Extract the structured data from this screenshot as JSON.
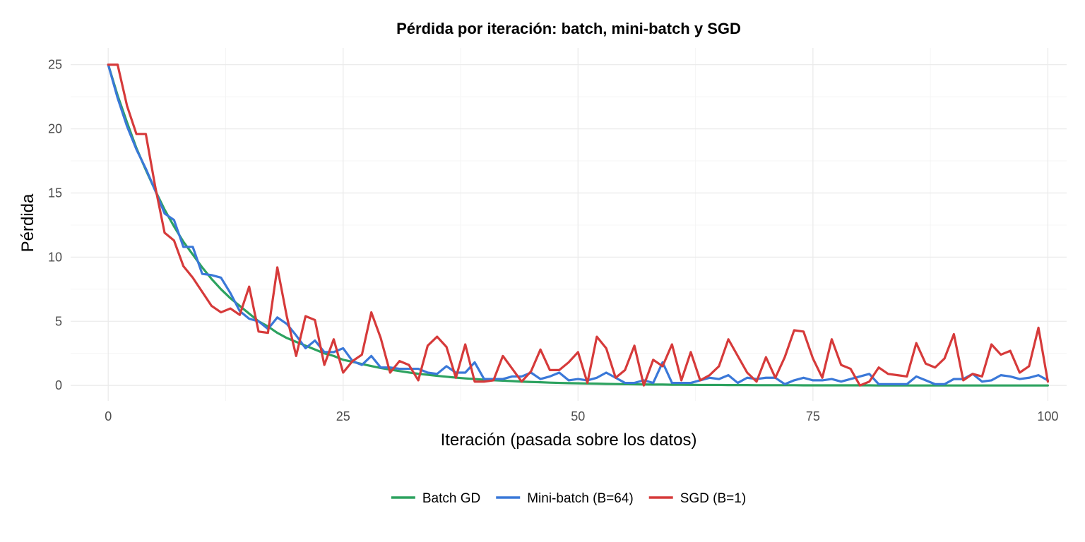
{
  "chart_data": {
    "type": "line",
    "title": "Pérdida por iteración: batch, mini-batch y SGD",
    "xlabel": "Iteración (pasada sobre los datos)",
    "ylabel": "Pérdida",
    "xlim": [
      -4,
      102
    ],
    "ylim": [
      -1.2,
      26.3
    ],
    "x_ticks": [
      0,
      25,
      50,
      75,
      100
    ],
    "y_ticks": [
      0,
      5,
      10,
      15,
      20,
      25
    ],
    "grid": true,
    "legend_position": "bottom",
    "x": [
      0,
      1,
      2,
      3,
      4,
      5,
      6,
      7,
      8,
      9,
      10,
      11,
      12,
      13,
      14,
      15,
      16,
      17,
      18,
      19,
      20,
      21,
      22,
      23,
      24,
      25,
      26,
      27,
      28,
      29,
      30,
      31,
      32,
      33,
      34,
      35,
      36,
      37,
      38,
      39,
      40,
      41,
      42,
      43,
      44,
      45,
      46,
      47,
      48,
      49,
      50,
      51,
      52,
      53,
      54,
      55,
      56,
      57,
      58,
      59,
      60,
      61,
      62,
      63,
      64,
      65,
      66,
      67,
      68,
      69,
      70,
      71,
      72,
      73,
      74,
      75,
      76,
      77,
      78,
      79,
      80,
      81,
      82,
      83,
      84,
      85,
      86,
      87,
      88,
      89,
      90,
      91,
      92,
      93,
      94,
      95,
      96,
      97,
      98,
      99,
      100
    ],
    "series": [
      {
        "name": "Batch GD",
        "color": "#2ca25f",
        "values": [
          25.0,
          22.6,
          20.5,
          18.5,
          16.8,
          15.2,
          13.7,
          12.4,
          11.2,
          10.2,
          9.2,
          8.3,
          7.5,
          6.8,
          6.2,
          5.6,
          5.0,
          4.6,
          4.1,
          3.7,
          3.4,
          3.1,
          2.8,
          2.5,
          2.3,
          2.0,
          1.84,
          1.67,
          1.51,
          1.36,
          1.24,
          1.12,
          1.01,
          0.91,
          0.83,
          0.75,
          0.68,
          0.61,
          0.55,
          0.5,
          0.45,
          0.41,
          0.37,
          0.34,
          0.3,
          0.27,
          0.25,
          0.22,
          0.2,
          0.18,
          0.17,
          0.15,
          0.14,
          0.12,
          0.11,
          0.1,
          0.09,
          0.08,
          0.07,
          0.07,
          0.06,
          0.06,
          0.05,
          0.04,
          0.04,
          0.04,
          0.03,
          0.03,
          0.03,
          0.02,
          0.02,
          0.02,
          0.02,
          0.02,
          0.01,
          0.01,
          0.01,
          0.01,
          0.01,
          0.01,
          0.01,
          0.01,
          0.0,
          0.0,
          0.0,
          0.0,
          0.0,
          0.0,
          0.0,
          0.0,
          0.0,
          0.0,
          0.0,
          0.0,
          0.0,
          0.0,
          0.0,
          0.0,
          0.0,
          0.0,
          0.0
        ]
      },
      {
        "name": "Mini-batch (B=64)",
        "color": "#3a78d8",
        "values": [
          25.0,
          22.4,
          20.2,
          18.4,
          16.9,
          15.2,
          13.4,
          12.9,
          10.8,
          10.8,
          8.7,
          8.6,
          8.4,
          7.2,
          5.8,
          5.2,
          5.0,
          4.4,
          5.3,
          4.8,
          3.9,
          2.9,
          3.5,
          2.6,
          2.6,
          2.9,
          1.9,
          1.6,
          2.3,
          1.4,
          1.4,
          1.3,
          1.3,
          1.3,
          1.0,
          0.9,
          1.5,
          1.0,
          1.0,
          1.8,
          0.5,
          0.5,
          0.5,
          0.7,
          0.7,
          1.0,
          0.5,
          0.7,
          1.0,
          0.4,
          0.5,
          0.4,
          0.6,
          1.0,
          0.6,
          0.2,
          0.2,
          0.4,
          0.2,
          1.8,
          0.2,
          0.2,
          0.2,
          0.4,
          0.6,
          0.5,
          0.8,
          0.2,
          0.6,
          0.5,
          0.6,
          0.6,
          0.1,
          0.4,
          0.6,
          0.4,
          0.4,
          0.5,
          0.3,
          0.5,
          0.7,
          0.9,
          0.1,
          0.1,
          0.1,
          0.1,
          0.7,
          0.4,
          0.1,
          0.1,
          0.5,
          0.5,
          0.9,
          0.3,
          0.4,
          0.8,
          0.7,
          0.5,
          0.6,
          0.8,
          0.4
        ]
      },
      {
        "name": "SGD (B=1)",
        "color": "#d63a3a",
        "values": [
          25.0,
          25.0,
          21.8,
          19.6,
          19.6,
          15.5,
          11.9,
          11.3,
          9.3,
          8.4,
          7.3,
          6.2,
          5.7,
          6.0,
          5.5,
          7.7,
          4.2,
          4.1,
          9.2,
          5.4,
          2.3,
          5.4,
          5.1,
          1.6,
          3.6,
          1.0,
          1.9,
          2.4,
          5.7,
          3.7,
          1.0,
          1.9,
          1.6,
          0.4,
          3.1,
          3.8,
          3.0,
          0.6,
          3.2,
          0.3,
          0.3,
          0.4,
          2.3,
          1.3,
          0.3,
          1.1,
          2.8,
          1.2,
          1.2,
          1.8,
          2.6,
          0.2,
          3.8,
          2.9,
          0.6,
          1.2,
          3.1,
          0.0,
          2.0,
          1.5,
          3.2,
          0.4,
          2.6,
          0.4,
          0.8,
          1.5,
          3.6,
          2.3,
          1.0,
          0.3,
          2.2,
          0.6,
          2.2,
          4.3,
          4.2,
          2.1,
          0.6,
          3.6,
          1.6,
          1.3,
          0.0,
          0.3,
          1.4,
          0.9,
          0.8,
          0.7,
          3.3,
          1.7,
          1.4,
          2.1,
          4.0,
          0.4,
          0.9,
          0.7,
          3.2,
          2.4,
          2.7,
          1.0,
          1.5,
          4.5,
          0.3
        ]
      }
    ]
  }
}
